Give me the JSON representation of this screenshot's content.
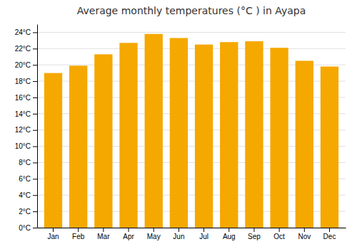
{
  "chart_data": {
    "type": "bar",
    "title": "Average monthly temperatures (°C ) in Ayapa",
    "categories": [
      "Jan",
      "Feb",
      "Mar",
      "Apr",
      "May",
      "Jun",
      "Jul",
      "Aug",
      "Sep",
      "Oct",
      "Nov",
      "Dec"
    ],
    "values": [
      19.0,
      19.9,
      21.3,
      22.7,
      23.8,
      23.3,
      22.5,
      22.8,
      22.9,
      22.1,
      20.5,
      19.8
    ],
    "color": "#F5A800",
    "ylim": [
      0,
      25
    ],
    "yticks": [
      {
        "value": 0,
        "label": "0°C"
      },
      {
        "value": 2,
        "label": "2°C"
      },
      {
        "value": 4,
        "label": "4°C"
      },
      {
        "value": 6,
        "label": "6°C"
      },
      {
        "value": 8,
        "label": "8°C"
      },
      {
        "value": 10,
        "label": "10°C"
      },
      {
        "value": 12,
        "label": "12°C"
      },
      {
        "value": 14,
        "label": "14°C"
      },
      {
        "value": 16,
        "label": "16°C"
      },
      {
        "value": 18,
        "label": "18°C"
      },
      {
        "value": 20,
        "label": "20°C"
      },
      {
        "value": 22,
        "label": "22°C"
      },
      {
        "value": 24,
        "label": "24°C"
      }
    ],
    "grid": true
  }
}
